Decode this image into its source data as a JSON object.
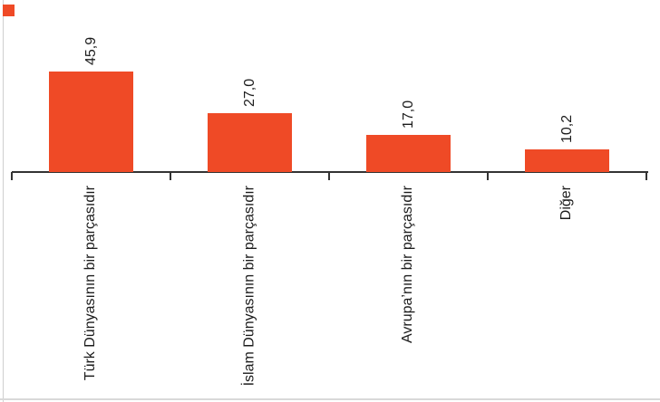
{
  "page": {
    "background_color": "#ffffff",
    "border_line_color": "#d9d9d9"
  },
  "legend": {
    "marker_color": "#EF4A26"
  },
  "chart_data": {
    "type": "bar",
    "orientation": "vertical",
    "title": "",
    "xlabel": "",
    "ylabel": "",
    "categories": [
      "Türk Dünyasının bir parçasıdır",
      "İslam Dünyasının bir parçasıdır",
      "Avrupa’nın bir parçasıdır",
      "Diğer"
    ],
    "values": [
      45.9,
      27.0,
      17.0,
      10.2
    ],
    "value_labels": [
      "45,9",
      "27,0",
      "17,0",
      "10,2"
    ],
    "value_label_format": "decimal-comma",
    "value_label_rotation_deg": -90,
    "category_label_rotation_deg": -90,
    "bar_color": "#EF4A26",
    "axis_color": "#333333",
    "label_color": "#1c1c1c",
    "ylim": [
      0,
      50
    ],
    "grid": false,
    "legend_position": "none",
    "y_axis_visible": false,
    "x_axis_tick_count": 5
  }
}
